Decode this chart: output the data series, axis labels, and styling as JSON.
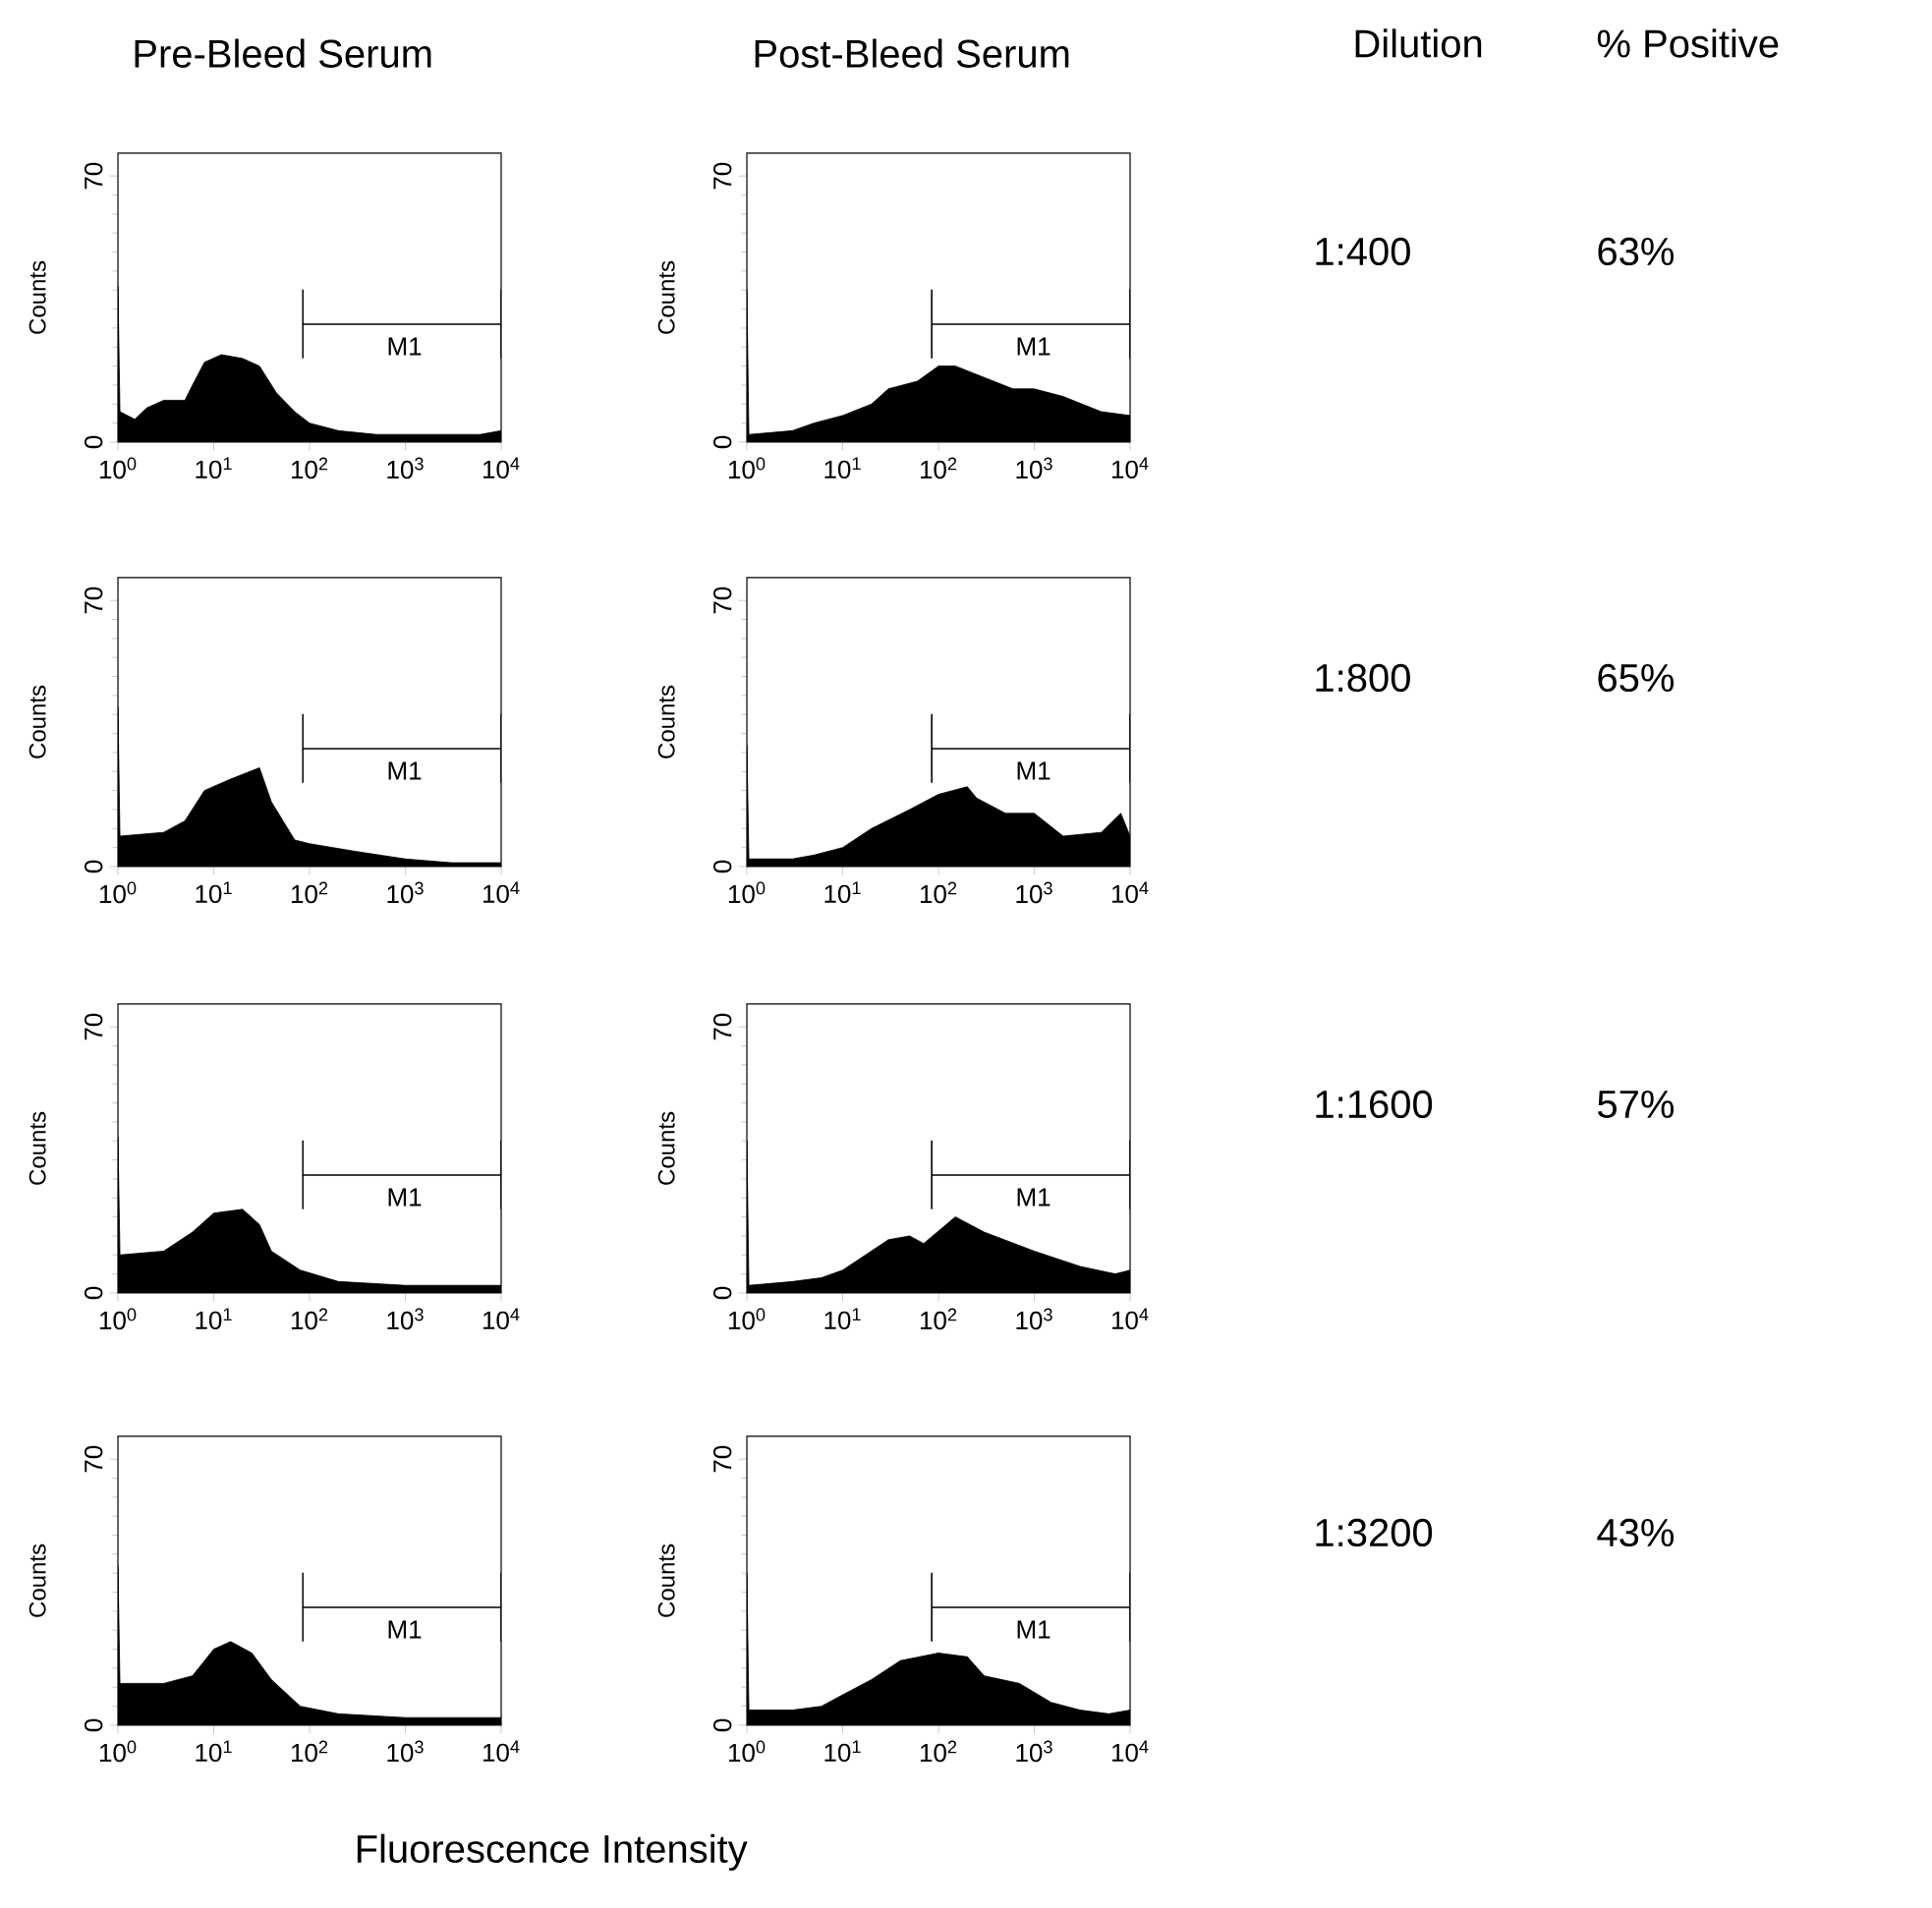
{
  "chart_data": [
    {
      "type": "area",
      "title": "Pre-Bleed Serum",
      "ylabel": "Counts",
      "log": "x",
      "xlim": [
        1,
        10000
      ],
      "ylim": [
        0,
        76
      ],
      "yticks": [
        0,
        70
      ],
      "xticks": [
        {
          "value": 1,
          "label": "10$^{0}$"
        },
        {
          "value": 10,
          "label": "10$^{1}$"
        },
        {
          "value": 100,
          "label": "10$^{2}$"
        },
        {
          "value": 1000,
          "label": "10$^{3}$"
        },
        {
          "value": 10000,
          "label": "10$^{4}$"
        }
      ],
      "series": [
        {
          "type": "area",
          "color": "#000000",
          "x": [
            1,
            1.05,
            1.5,
            2,
            3,
            5,
            6,
            8,
            12,
            20,
            30,
            45,
            70,
            100,
            200,
            500,
            1000,
            3000,
            6000,
            10000
          ],
          "values": [
            41,
            8,
            6,
            9,
            11,
            11,
            15,
            21,
            23,
            22,
            20,
            13,
            8,
            5,
            3,
            2,
            2,
            2,
            2,
            3
          ]
        },
        {
          "type": "line",
          "name": "M1",
          "color": "#000000",
          "x": [
            85,
            85,
            85,
            10000,
            10000,
            10000
          ],
          "values": [
            22,
            40,
            31,
            31,
            40,
            22
          ]
        }
      ]
    },
    {
      "type": "area",
      "title": "Post-Bleed Serum",
      "ylabel": "Counts",
      "log": "x",
      "xlim": [
        1,
        10000
      ],
      "ylim": [
        0,
        76
      ],
      "yticks": [
        0,
        70
      ],
      "xticks": [
        {
          "value": 1,
          "label": "10$^{0}$"
        },
        {
          "value": 10,
          "label": "10$^{1}$"
        },
        {
          "value": 100,
          "label": "10$^{2}$"
        },
        {
          "value": 1000,
          "label": "10$^{3}$"
        },
        {
          "value": 10000,
          "label": "10$^{4}$"
        }
      ],
      "series": [
        {
          "type": "area",
          "color": "#000000",
          "x": [
            1,
            1.05,
            3,
            5,
            10,
            20,
            30,
            60,
            100,
            150,
            300,
            600,
            1000,
            2000,
            5000,
            10000
          ],
          "values": [
            40,
            2,
            3,
            5,
            7,
            10,
            14,
            16,
            20,
            20,
            17,
            14,
            14,
            12,
            8,
            7
          ]
        },
        {
          "type": "line",
          "name": "M1",
          "color": "#000000",
          "x": [
            85,
            85,
            85,
            10000,
            10000,
            10000
          ],
          "values": [
            22,
            40,
            31,
            31,
            40,
            22
          ]
        }
      ]
    },
    {
      "type": "area",
      "ylabel": "Counts",
      "log": "x",
      "xlim": [
        1,
        10000
      ],
      "ylim": [
        0,
        76
      ],
      "yticks": [
        0,
        70
      ],
      "xticks": [
        {
          "value": 1,
          "label": "10$^{0}$"
        },
        {
          "value": 10,
          "label": "10$^{1}$"
        },
        {
          "value": 100,
          "label": "10$^{2}$"
        },
        {
          "value": 1000,
          "label": "10$^{3}$"
        },
        {
          "value": 10000,
          "label": "10$^{4}$"
        }
      ],
      "series": [
        {
          "type": "area",
          "color": "#000000",
          "x": [
            1,
            1.05,
            3,
            5,
            8,
            15,
            30,
            40,
            70,
            100,
            300,
            1000,
            3000,
            10000
          ],
          "values": [
            42,
            8,
            9,
            12,
            20,
            23,
            26,
            17,
            7,
            6,
            4,
            2,
            1,
            1
          ]
        },
        {
          "type": "line",
          "name": "M1",
          "color": "#000000",
          "x": [
            85,
            85,
            85,
            10000,
            10000,
            10000
          ],
          "values": [
            22,
            40,
            31,
            31,
            40,
            22
          ]
        }
      ]
    },
    {
      "type": "area",
      "ylabel": "Counts",
      "log": "x",
      "xlim": [
        1,
        10000
      ],
      "ylim": [
        0,
        76
      ],
      "yticks": [
        0,
        70
      ],
      "xticks": [
        {
          "value": 1,
          "label": "10$^{0}$"
        },
        {
          "value": 10,
          "label": "10$^{1}$"
        },
        {
          "value": 100,
          "label": "10$^{2}$"
        },
        {
          "value": 1000,
          "label": "10$^{3}$"
        },
        {
          "value": 10000,
          "label": "10$^{4}$"
        }
      ],
      "series": [
        {
          "type": "area",
          "color": "#000000",
          "x": [
            1,
            1.05,
            3,
            5,
            10,
            20,
            50,
            100,
            200,
            250,
            500,
            1000,
            2000,
            5000,
            8000,
            10000
          ],
          "values": [
            32,
            2,
            2,
            3,
            5,
            10,
            15,
            19,
            21,
            18,
            14,
            14,
            8,
            9,
            14,
            8
          ]
        },
        {
          "type": "line",
          "name": "M1",
          "color": "#000000",
          "x": [
            85,
            85,
            85,
            10000,
            10000,
            10000
          ],
          "values": [
            22,
            40,
            31,
            31,
            40,
            22
          ]
        }
      ]
    },
    {
      "type": "area",
      "ylabel": "Counts",
      "log": "x",
      "xlim": [
        1,
        10000
      ],
      "ylim": [
        0,
        76
      ],
      "yticks": [
        0,
        70
      ],
      "xticks": [
        {
          "value": 1,
          "label": "10$^{0}$"
        },
        {
          "value": 10,
          "label": "10$^{1}$"
        },
        {
          "value": 100,
          "label": "10$^{2}$"
        },
        {
          "value": 1000,
          "label": "10$^{3}$"
        },
        {
          "value": 10000,
          "label": "10$^{4}$"
        }
      ],
      "series": [
        {
          "type": "area",
          "color": "#000000",
          "x": [
            1,
            1.05,
            3,
            6,
            10,
            20,
            30,
            40,
            80,
            200,
            1000,
            10000
          ],
          "values": [
            41,
            10,
            11,
            16,
            21,
            22,
            18,
            11,
            6,
            3,
            2,
            2
          ]
        },
        {
          "type": "line",
          "name": "M1",
          "color": "#000000",
          "x": [
            85,
            85,
            85,
            10000,
            10000,
            10000
          ],
          "values": [
            22,
            40,
            31,
            31,
            40,
            22
          ]
        }
      ]
    },
    {
      "type": "area",
      "ylabel": "Counts",
      "log": "x",
      "xlim": [
        1,
        10000
      ],
      "ylim": [
        0,
        76
      ],
      "yticks": [
        0,
        70
      ],
      "xticks": [
        {
          "value": 1,
          "label": "10$^{0}$"
        },
        {
          "value": 10,
          "label": "10$^{1}$"
        },
        {
          "value": 100,
          "label": "10$^{2}$"
        },
        {
          "value": 1000,
          "label": "10$^{3}$"
        },
        {
          "value": 10000,
          "label": "10$^{4}$"
        }
      ],
      "series": [
        {
          "type": "area",
          "color": "#000000",
          "x": [
            1,
            1.05,
            3,
            6,
            10,
            30,
            50,
            70,
            150,
            300,
            1000,
            3000,
            7000,
            10000
          ],
          "values": [
            40,
            2,
            3,
            4,
            6,
            14,
            15,
            13,
            20,
            16,
            11,
            7,
            5,
            6
          ]
        },
        {
          "type": "line",
          "name": "M1",
          "color": "#000000",
          "x": [
            85,
            85,
            85,
            10000,
            10000,
            10000
          ],
          "values": [
            22,
            40,
            31,
            31,
            40,
            22
          ]
        }
      ]
    },
    {
      "type": "area",
      "ylabel": "Counts",
      "xlabel": "Fluorescence Intensity",
      "log": "x",
      "xlim": [
        1,
        10000
      ],
      "ylim": [
        0,
        76
      ],
      "yticks": [
        0,
        70
      ],
      "xticks": [
        {
          "value": 1,
          "label": "10$^{0}$"
        },
        {
          "value": 10,
          "label": "10$^{1}$"
        },
        {
          "value": 100,
          "label": "10$^{2}$"
        },
        {
          "value": 1000,
          "label": "10$^{3}$"
        },
        {
          "value": 10000,
          "label": "10$^{4}$"
        }
      ],
      "series": [
        {
          "type": "area",
          "color": "#000000",
          "x": [
            1,
            1.05,
            3,
            6,
            10,
            15,
            25,
            40,
            80,
            200,
            1000,
            10000
          ],
          "values": [
            42,
            11,
            11,
            13,
            20,
            22,
            19,
            12,
            5,
            3,
            2,
            2
          ]
        },
        {
          "type": "line",
          "name": "M1",
          "color": "#000000",
          "x": [
            85,
            85,
            85,
            10000,
            10000,
            10000
          ],
          "values": [
            22,
            40,
            31,
            31,
            40,
            22
          ]
        }
      ]
    },
    {
      "type": "area",
      "ylabel": "Counts",
      "log": "x",
      "xlim": [
        1,
        10000
      ],
      "ylim": [
        0,
        76
      ],
      "yticks": [
        0,
        70
      ],
      "xticks": [
        {
          "value": 1,
          "label": "10$^{0}$"
        },
        {
          "value": 10,
          "label": "10$^{1}$"
        },
        {
          "value": 100,
          "label": "10$^{2}$"
        },
        {
          "value": 1000,
          "label": "10$^{3}$"
        },
        {
          "value": 10000,
          "label": "10$^{4}$"
        }
      ],
      "series": [
        {
          "type": "area",
          "color": "#000000",
          "x": [
            1,
            1.05,
            3,
            6,
            10,
            20,
            40,
            100,
            200,
            300,
            700,
            1500,
            3000,
            6000,
            10000
          ],
          "values": [
            40,
            4,
            4,
            5,
            8,
            12,
            17,
            19,
            18,
            13,
            11,
            6,
            4,
            3,
            4
          ]
        },
        {
          "type": "line",
          "name": "M1",
          "color": "#000000",
          "x": [
            85,
            85,
            85,
            10000,
            10000,
            10000
          ],
          "values": [
            22,
            40,
            31,
            31,
            40,
            22
          ]
        }
      ]
    },
    {
      "type": "other",
      "annotations": [
        "Dilution",
        "% Positive",
        "1:400",
        "63%",
        "1:800",
        "65%",
        "1:1600",
        "57%",
        "1:3200",
        "43%"
      ]
    }
  ]
}
